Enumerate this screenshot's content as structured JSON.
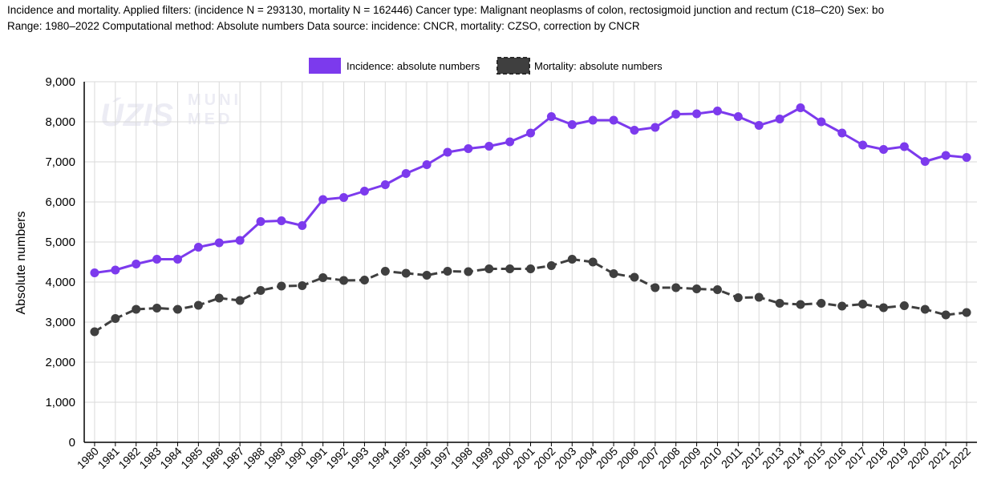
{
  "header": {
    "line1": "Incidence and mortality. Applied filters: (incidence N = 293130, mortality N = 162446) Cancer type: Malignant neoplasms of colon, rectosigmoid junction and rectum (C18–C20) Sex: bo",
    "line2": "Range: 1980–2022 Computational method: Absolute numbers Data source: incidence: CNCR, mortality: CZSO, correction by CNCR"
  },
  "watermark": {
    "left": "ÚZIS",
    "right_top": "MUNI",
    "right_bottom": "MED"
  },
  "colors": {
    "incidence": "#7c3aed",
    "mortality": "#3f3f3f",
    "grid": "#d9d9d9",
    "axis": "#000000"
  },
  "chart_data": {
    "type": "line",
    "ylabel": "Absolute numbers",
    "xlabel": "",
    "ylim": [
      0,
      9000
    ],
    "yticks": [
      "0",
      "1,000",
      "2,000",
      "3,000",
      "4,000",
      "5,000",
      "6,000",
      "7,000",
      "8,000",
      "9,000"
    ],
    "grid": true,
    "legend_position": "top-center",
    "categories": [
      "1980",
      "1981",
      "1982",
      "1983",
      "1984",
      "1985",
      "1986",
      "1987",
      "1988",
      "1989",
      "1990",
      "1991",
      "1992",
      "1993",
      "1994",
      "1995",
      "1996",
      "1997",
      "1998",
      "1999",
      "2000",
      "2001",
      "2002",
      "2003",
      "2004",
      "2005",
      "2006",
      "2007",
      "2008",
      "2009",
      "2010",
      "2011",
      "2012",
      "2013",
      "2014",
      "2015",
      "2016",
      "2017",
      "2018",
      "2019",
      "2020",
      "2021",
      "2022"
    ],
    "series": [
      {
        "name": "Incidence: absolute numbers",
        "style": "solid",
        "values": [
          4230,
          4300,
          4450,
          4570,
          4570,
          4870,
          4980,
          5040,
          5510,
          5530,
          5410,
          6060,
          6110,
          6270,
          6430,
          6710,
          6930,
          7240,
          7330,
          7390,
          7500,
          7720,
          8130,
          7930,
          8040,
          8040,
          7790,
          7860,
          8190,
          8200,
          8270,
          8130,
          7910,
          8070,
          8350,
          8000,
          7720,
          7420,
          7310,
          7380,
          7010,
          7160,
          7110
        ]
      },
      {
        "name": "Mortality: absolute numbers",
        "style": "dashed",
        "values": [
          2760,
          3090,
          3320,
          3350,
          3320,
          3420,
          3600,
          3540,
          3790,
          3900,
          3910,
          4110,
          4040,
          4050,
          4270,
          4220,
          4170,
          4270,
          4260,
          4330,
          4330,
          4330,
          4410,
          4570,
          4500,
          4210,
          4120,
          3860,
          3860,
          3830,
          3810,
          3610,
          3620,
          3470,
          3440,
          3470,
          3400,
          3450,
          3360,
          3410,
          3320,
          3180,
          3240
        ]
      }
    ]
  }
}
